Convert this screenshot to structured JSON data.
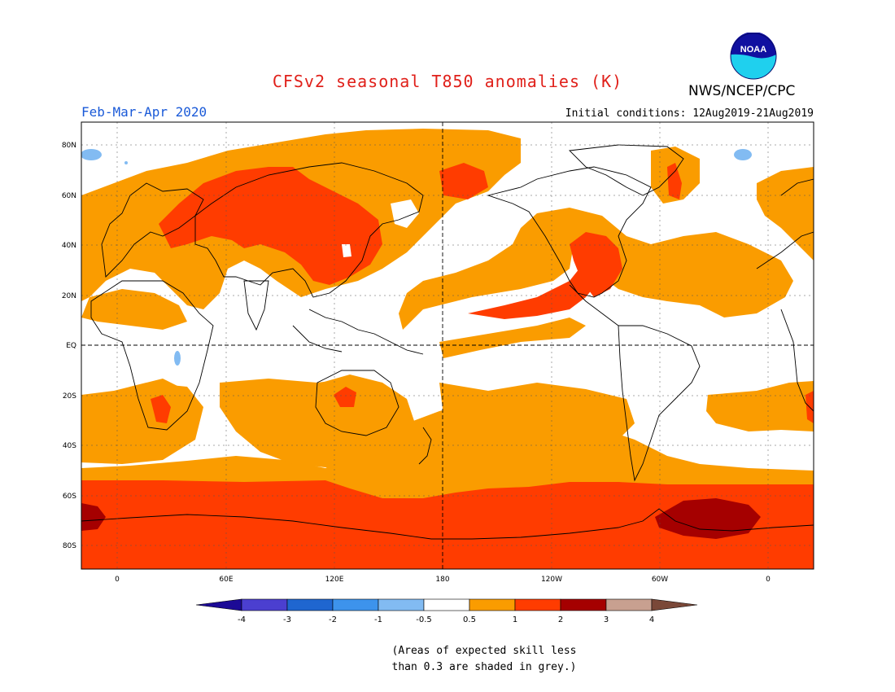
{
  "header": {
    "title": "CFSv2 seasonal T850 anomalies (K)",
    "season": "Feb-Mar-Apr 2020",
    "initial_conditions": "Initial conditions: 12Aug2019-21Aug2019",
    "agency": "NWS/NCEP/CPC",
    "logo_text": "NOAA",
    "logo_icon": "noaa-logo"
  },
  "axes": {
    "lat_labels": [
      "80N",
      "60N",
      "40N",
      "20N",
      "EQ",
      "20S",
      "40S",
      "60S",
      "80S"
    ],
    "lon_labels": [
      "0",
      "60E",
      "120E",
      "180",
      "120W",
      "60W",
      "0"
    ]
  },
  "colorbar": {
    "labels": [
      "-4",
      "-3",
      "-2",
      "-1",
      "-0.5",
      "0.5",
      "1",
      "2",
      "3",
      "4"
    ],
    "colors": [
      "#1c0a96",
      "#4b3fd0",
      "#1f66d0",
      "#3d93ec",
      "#82bbf2",
      "#ffffff",
      "#fa9c00",
      "#ff3c00",
      "#a50000",
      "#c8a090",
      "#7a4838"
    ]
  },
  "footnote": {
    "line1": "(Areas of expected skill less",
    "line2": "than 0.3 are shaded in grey.)"
  },
  "colors": {
    "title": "#e0201a",
    "season": "#1a5ad8",
    "anomaly_0_5_to_1": "#fa9c00",
    "anomaly_1_to_2": "#ff3c00",
    "anomaly_2_to_3": "#a50000",
    "anomaly_neg_0_5_to_neg_1": "#82bbf2"
  }
}
